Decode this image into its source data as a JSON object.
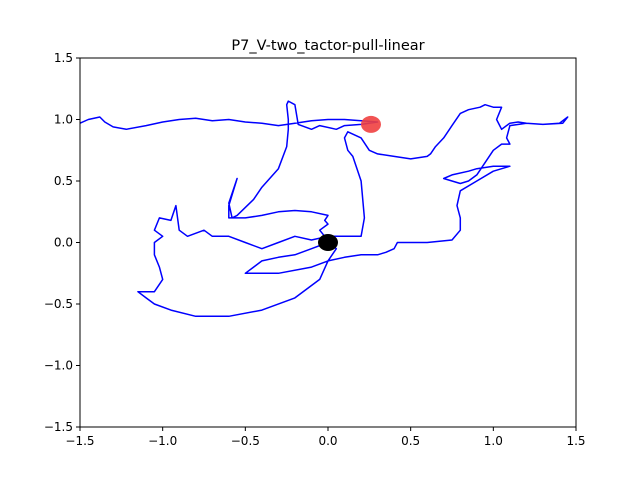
{
  "chart_data": {
    "type": "line",
    "title": "P7_V-two_tactor-pull-linear",
    "xlabel": "",
    "ylabel": "",
    "xlim": [
      -1.5,
      1.5
    ],
    "ylim": [
      -1.5,
      1.5
    ],
    "xticks": [
      -1.5,
      -1.0,
      -0.5,
      0.0,
      0.5,
      1.0,
      1.5
    ],
    "xtick_labels": [
      "−1.5",
      "−1.0",
      "−0.5",
      "0.0",
      "0.5",
      "1.0",
      "1.5"
    ],
    "yticks": [
      -1.5,
      -1.0,
      -0.5,
      0.0,
      0.5,
      1.0,
      1.5
    ],
    "ytick_labels": [
      "−1.5",
      "−1.0",
      "−0.5",
      "0.0",
      "0.5",
      "1.0",
      "1.5"
    ],
    "grid": false,
    "trajectory_color": "#0000ff",
    "trajectory": [
      [
        -1.5,
        0.97
      ],
      [
        -1.45,
        1.0
      ],
      [
        -1.38,
        1.02
      ],
      [
        -1.35,
        0.98
      ],
      [
        -1.3,
        0.94
      ],
      [
        -1.22,
        0.92
      ],
      [
        -1.1,
        0.95
      ],
      [
        -1.0,
        0.98
      ],
      [
        -0.9,
        1.0
      ],
      [
        -0.8,
        1.01
      ],
      [
        -0.7,
        0.99
      ],
      [
        -0.6,
        1.0
      ],
      [
        -0.5,
        0.98
      ],
      [
        -0.4,
        0.97
      ],
      [
        -0.3,
        0.95
      ],
      [
        -0.2,
        0.97
      ],
      [
        -0.1,
        0.99
      ],
      [
        0.0,
        1.0
      ],
      [
        0.1,
        1.0
      ],
      [
        0.2,
        0.99
      ],
      [
        0.3,
        0.98
      ],
      [
        0.2,
        0.96
      ],
      [
        0.1,
        0.95
      ],
      [
        0.05,
        0.92
      ],
      [
        -0.05,
        0.95
      ],
      [
        -0.1,
        0.92
      ],
      [
        -0.18,
        0.96
      ],
      [
        -0.2,
        1.12
      ],
      [
        -0.24,
        1.15
      ],
      [
        -0.25,
        1.12
      ],
      [
        -0.24,
        1.0
      ],
      [
        -0.24,
        0.92
      ],
      [
        -0.25,
        0.78
      ],
      [
        -0.3,
        0.6
      ],
      [
        -0.4,
        0.45
      ],
      [
        -0.45,
        0.35
      ],
      [
        -0.55,
        0.22
      ],
      [
        -0.58,
        0.2
      ],
      [
        -0.6,
        0.32
      ],
      [
        -0.55,
        0.52
      ],
      [
        -0.6,
        0.3
      ],
      [
        -0.6,
        0.2
      ],
      [
        -0.5,
        0.2
      ],
      [
        -0.4,
        0.22
      ],
      [
        -0.3,
        0.25
      ],
      [
        -0.2,
        0.26
      ],
      [
        -0.1,
        0.25
      ],
      [
        0.0,
        0.22
      ],
      [
        -0.02,
        0.18
      ],
      [
        0.0,
        0.15
      ],
      [
        -0.05,
        0.1
      ],
      [
        -0.02,
        0.05
      ],
      [
        0.0,
        0.0
      ],
      [
        0.05,
        -0.05
      ],
      [
        0.0,
        -0.15
      ],
      [
        -0.05,
        -0.3
      ],
      [
        -0.2,
        -0.45
      ],
      [
        -0.4,
        -0.55
      ],
      [
        -0.6,
        -0.6
      ],
      [
        -0.8,
        -0.6
      ],
      [
        -0.95,
        -0.55
      ],
      [
        -1.05,
        -0.5
      ],
      [
        -1.1,
        -0.45
      ],
      [
        -1.15,
        -0.4
      ],
      [
        -1.05,
        -0.4
      ],
      [
        -1.0,
        -0.3
      ],
      [
        -1.02,
        -0.2
      ],
      [
        -1.05,
        -0.1
      ],
      [
        -1.05,
        0.0
      ],
      [
        -1.0,
        0.05
      ],
      [
        -1.05,
        0.1
      ],
      [
        -1.02,
        0.2
      ],
      [
        -0.95,
        0.18
      ],
      [
        -0.92,
        0.3
      ],
      [
        -0.9,
        0.1
      ],
      [
        -0.85,
        0.05
      ],
      [
        -0.75,
        0.1
      ],
      [
        -0.7,
        0.05
      ],
      [
        -0.6,
        0.05
      ],
      [
        -0.5,
        0.0
      ],
      [
        -0.4,
        -0.05
      ],
      [
        -0.3,
        0.0
      ],
      [
        -0.2,
        0.05
      ],
      [
        -0.1,
        0.02
      ],
      [
        0.0,
        0.05
      ],
      [
        0.1,
        0.05
      ],
      [
        0.2,
        0.05
      ],
      [
        0.22,
        0.2
      ],
      [
        0.2,
        0.5
      ],
      [
        0.15,
        0.7
      ],
      [
        0.12,
        0.75
      ],
      [
        0.1,
        0.85
      ],
      [
        0.12,
        0.9
      ],
      [
        0.2,
        0.85
      ],
      [
        0.25,
        0.75
      ],
      [
        0.3,
        0.72
      ],
      [
        0.4,
        0.7
      ],
      [
        0.5,
        0.68
      ],
      [
        0.6,
        0.7
      ],
      [
        0.62,
        0.72
      ],
      [
        0.65,
        0.78
      ],
      [
        0.7,
        0.85
      ],
      [
        0.75,
        0.95
      ],
      [
        0.8,
        1.05
      ],
      [
        0.85,
        1.08
      ],
      [
        0.92,
        1.1
      ],
      [
        0.95,
        1.12
      ],
      [
        1.0,
        1.1
      ],
      [
        1.05,
        1.1
      ],
      [
        1.02,
        1.0
      ],
      [
        1.05,
        0.92
      ],
      [
        1.1,
        0.97
      ],
      [
        1.15,
        0.98
      ],
      [
        1.2,
        0.97
      ],
      [
        1.3,
        0.96
      ],
      [
        1.4,
        0.97
      ],
      [
        1.45,
        1.02
      ],
      [
        1.42,
        0.97
      ],
      [
        1.3,
        0.96
      ],
      [
        1.2,
        0.97
      ],
      [
        1.1,
        0.95
      ],
      [
        1.08,
        0.85
      ],
      [
        1.1,
        0.8
      ],
      [
        1.05,
        0.8
      ],
      [
        1.0,
        0.75
      ],
      [
        0.95,
        0.65
      ],
      [
        0.9,
        0.55
      ],
      [
        0.85,
        0.5
      ],
      [
        0.8,
        0.48
      ],
      [
        0.75,
        0.5
      ],
      [
        0.7,
        0.52
      ],
      [
        0.75,
        0.55
      ],
      [
        0.85,
        0.58
      ],
      [
        0.9,
        0.6
      ],
      [
        1.0,
        0.62
      ],
      [
        1.1,
        0.62
      ],
      [
        1.0,
        0.58
      ],
      [
        0.9,
        0.5
      ],
      [
        0.8,
        0.42
      ],
      [
        0.78,
        0.3
      ],
      [
        0.8,
        0.2
      ],
      [
        0.8,
        0.1
      ],
      [
        0.75,
        0.02
      ],
      [
        0.6,
        0.0
      ],
      [
        0.5,
        0.0
      ],
      [
        0.42,
        0.0
      ],
      [
        0.4,
        -0.05
      ],
      [
        0.35,
        -0.08
      ],
      [
        0.3,
        -0.1
      ],
      [
        0.2,
        -0.1
      ],
      [
        0.1,
        -0.12
      ],
      [
        0.0,
        -0.15
      ],
      [
        -0.1,
        -0.2
      ],
      [
        -0.3,
        -0.25
      ],
      [
        -0.5,
        -0.25
      ],
      [
        -0.45,
        -0.2
      ],
      [
        -0.4,
        -0.15
      ],
      [
        -0.3,
        -0.12
      ],
      [
        -0.2,
        -0.1
      ],
      [
        -0.1,
        -0.05
      ],
      [
        0.0,
        0.0
      ]
    ],
    "markers": [
      {
        "x": 0.0,
        "y": 0.0,
        "color": "#000000"
      },
      {
        "x": 0.26,
        "y": 0.96,
        "color": "#f04040"
      }
    ]
  }
}
